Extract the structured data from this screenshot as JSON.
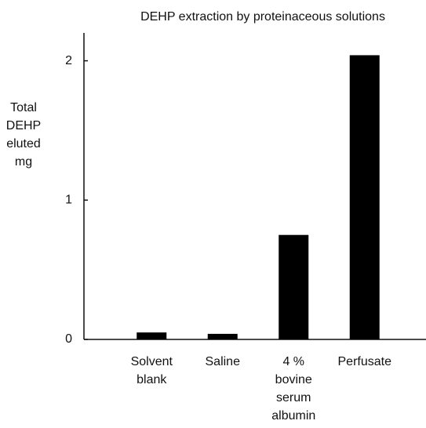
{
  "chart_data": {
    "type": "bar",
    "title": "DEHP   extraction by proteinaceous solutions",
    "y_label": "Total DEHP eluted mg",
    "categories": [
      "Solvent blank",
      "Saline",
      "4 % bovine serum albumin",
      "Perfusate"
    ],
    "values": [
      0.05,
      0.04,
      0.75,
      2.04
    ],
    "color": "#000000",
    "ylim": [
      0,
      2.2
    ],
    "yticks": [
      0,
      1,
      2
    ],
    "grid": false
  }
}
